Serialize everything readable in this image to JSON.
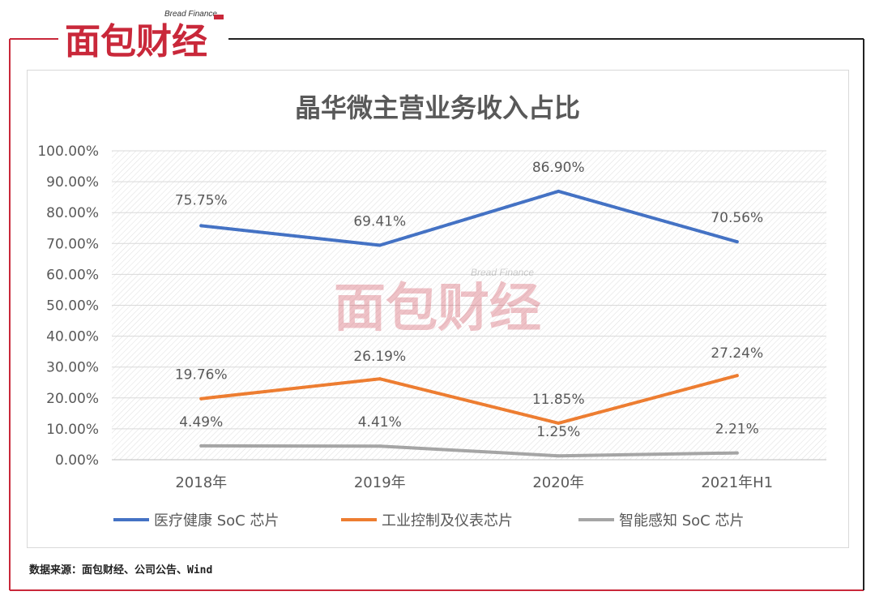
{
  "brand": {
    "logo_cn": "面包财经",
    "logo_en": "Bread Finance",
    "watermark_cn": "面包财经",
    "watermark_en": "Bread Finance"
  },
  "footer": {
    "source": "数据来源：面包财经、公司公告、Wind"
  },
  "colors": {
    "frame": "#c9283a",
    "series_medical": "#4472c4",
    "series_industrial": "#ed7d31",
    "series_sensing": "#a5a5a5",
    "text": "#595959"
  },
  "chart_data": {
    "type": "line",
    "title": "晶华微主营业务收入占比",
    "categories": [
      "2018年",
      "2019年",
      "2020年",
      "2021年H1"
    ],
    "ylim": [
      0,
      100
    ],
    "y_ticks": [
      "0.00%",
      "10.00%",
      "20.00%",
      "30.00%",
      "40.00%",
      "50.00%",
      "60.00%",
      "70.00%",
      "80.00%",
      "90.00%",
      "100.00%"
    ],
    "y_tick_values": [
      0,
      10,
      20,
      30,
      40,
      50,
      60,
      70,
      80,
      90,
      100
    ],
    "grid": true,
    "legend_position": "bottom",
    "series": [
      {
        "name": "医疗健康 SoC 芯片",
        "values": [
          75.75,
          69.41,
          86.9,
          70.56
        ],
        "labels": [
          "75.75%",
          "69.41%",
          "86.90%",
          "70.56%"
        ],
        "color": "#4472c4"
      },
      {
        "name": "工业控制及仪表芯片",
        "values": [
          19.76,
          26.19,
          11.85,
          27.24
        ],
        "labels": [
          "19.76%",
          "26.19%",
          "11.85%",
          "27.24%"
        ],
        "color": "#ed7d31"
      },
      {
        "name": "智能感知 SoC 芯片",
        "values": [
          4.49,
          4.41,
          1.25,
          2.21
        ],
        "labels": [
          "4.49%",
          "4.41%",
          "1.25%",
          "2.21%"
        ],
        "color": "#a5a5a5"
      }
    ]
  }
}
